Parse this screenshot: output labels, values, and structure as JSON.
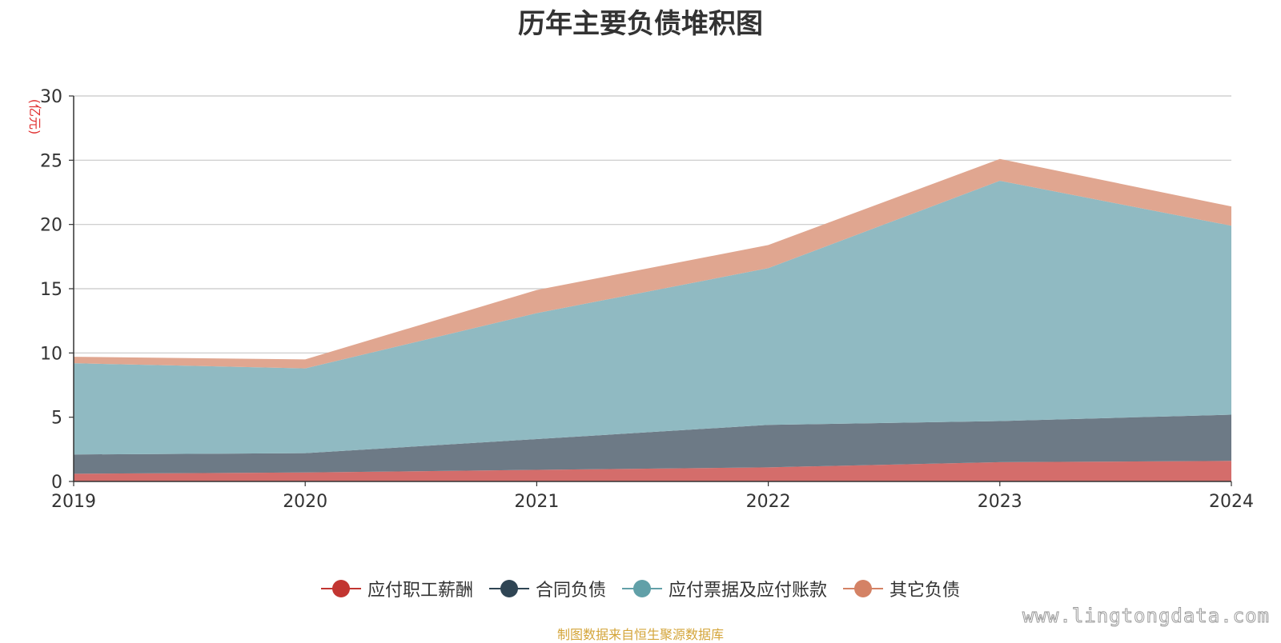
{
  "chart_data": {
    "type": "area",
    "stacked": true,
    "title": "历年主要负债堆积图",
    "ylabel": "(亿元)",
    "xlabel": "",
    "categories": [
      "2019",
      "2020",
      "2021",
      "2022",
      "2023",
      "2024"
    ],
    "ylim": [
      0,
      30
    ],
    "yticks": [
      0,
      5,
      10,
      15,
      20,
      25,
      30
    ],
    "grid": true,
    "legend_position": "bottom",
    "series": [
      {
        "name": "应付职工薪酬",
        "values": [
          0.6,
          0.7,
          0.9,
          1.1,
          1.5,
          1.6
        ],
        "color": "#c23531",
        "fill": "#d46d6b"
      },
      {
        "name": "合同负债",
        "values": [
          1.5,
          1.5,
          2.4,
          3.3,
          3.2,
          3.6
        ],
        "color": "#2f4554",
        "fill": "#6d7a86"
      },
      {
        "name": "应付票据及应付账款",
        "values": [
          7.1,
          6.6,
          9.8,
          12.2,
          18.7,
          14.7
        ],
        "color": "#61a0a8",
        "fill": "#90bac2"
      },
      {
        "name": "其它负债",
        "values": [
          0.5,
          0.7,
          1.8,
          1.8,
          1.7,
          1.5
        ],
        "color": "#d48265",
        "fill": "#e0a690"
      }
    ]
  },
  "footer": {
    "source": "制图数据来自恒生聚源数据库",
    "watermark": "www.lingtongdata.com"
  }
}
